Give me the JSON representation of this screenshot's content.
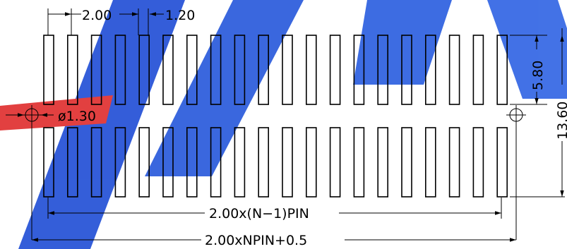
{
  "diagram": {
    "pitch_label": "2.00",
    "pad_width_label": "1.20",
    "hole_label": "ø1.30",
    "pad_length_label": "5.80",
    "overall_height_label": "13.60",
    "span_label": "2.00x(N−1)PIN",
    "overall_width_label": "2.00xNPIN+0.5",
    "pads_per_row": 20,
    "rows": 2,
    "mounting_holes": 2,
    "colors": {
      "line": "#000000",
      "watermark_blue": "#1f4fd0",
      "watermark_red": "#e02a2a"
    }
  }
}
